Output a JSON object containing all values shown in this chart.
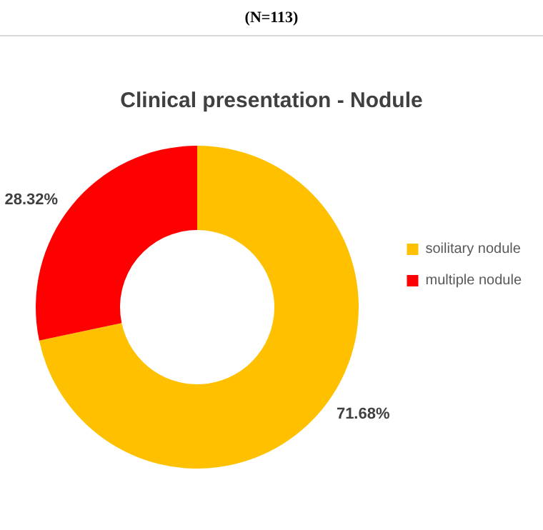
{
  "chart_data": {
    "type": "donut",
    "subtitle": "(N=113)",
    "title": "Clinical presentation - Nodule",
    "categories": [
      "soilitary nodule",
      "multiple nodule"
    ],
    "values": [
      71.68,
      28.32
    ],
    "colors": [
      "#ffc000",
      "#ff0000"
    ],
    "value_labels": [
      "71.68%",
      "28.32%"
    ],
    "legend": "right"
  }
}
